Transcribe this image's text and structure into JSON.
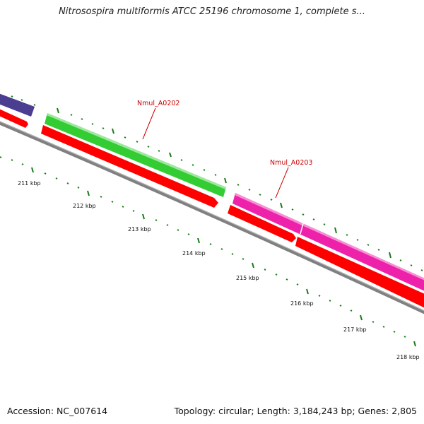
{
  "map": {
    "title": "Nitrosospira multiformis ATCC 25196 chromosome 1, complete s...",
    "accession_text": "Accession: NC_007614",
    "summary_text": "Topology: circular; Length: 3,184,243 bp; Genes: 2,805"
  },
  "colors": {
    "backbone": "#808080",
    "backbone_highlight": "#b8b8b8",
    "cds": "#ff0000",
    "tick": "#1a7a1a",
    "label": "#cc0000",
    "gene_purple": "#4b3d8f",
    "gene_green": "#33cc33",
    "gene_magenta": "#ee22aa"
  },
  "axis": {
    "unit": "kbp",
    "ticks": [
      {
        "kbp": 211,
        "label": "211 kbp"
      },
      {
        "kbp": 212,
        "label": "212 kbp"
      },
      {
        "kbp": 213,
        "label": "213 kbp"
      },
      {
        "kbp": 214,
        "label": "214 kbp"
      },
      {
        "kbp": 215,
        "label": "215 kbp"
      },
      {
        "kbp": 216,
        "label": "216 kbp"
      },
      {
        "kbp": 217,
        "label": "217 kbp"
      },
      {
        "kbp": 218,
        "label": "218 kbp"
      }
    ]
  },
  "features": {
    "genes": [
      {
        "name": "",
        "color": "purple"
      },
      {
        "name": "Nmul_A0202",
        "color": "green"
      },
      {
        "name": "Nmul_A0203",
        "color": "magenta"
      }
    ],
    "cds_count": 4
  }
}
